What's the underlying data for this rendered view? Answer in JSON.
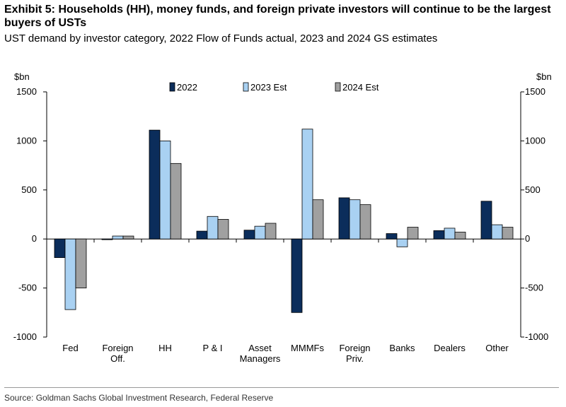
{
  "title": "Exhibit 5: Households (HH), money funds, and foreign private investors will continue to be the largest buyers of USTs",
  "subtitle": "UST demand by investor category, 2022 Flow of Funds actual, 2023 and 2024 GS estimates",
  "source": "Source: Goldman Sachs Global Investment Research, Federal Reserve",
  "chart_data": {
    "type": "bar",
    "left_unit": "$bn",
    "right_unit": "$bn",
    "ylim": [
      -1000,
      1500
    ],
    "yticks": [
      -1000,
      -500,
      0,
      500,
      1000,
      1500
    ],
    "grid": false,
    "legend_position": "top",
    "categories": [
      [
        "Fed"
      ],
      [
        "Foreign",
        "Off."
      ],
      [
        "HH"
      ],
      [
        "P & I"
      ],
      [
        "Asset",
        "Managers"
      ],
      [
        "MMMFs"
      ],
      [
        "Foreign",
        "Priv."
      ],
      [
        "Banks"
      ],
      [
        "Dealers"
      ],
      [
        "Other"
      ]
    ],
    "series": [
      {
        "name": "2022",
        "color": "#0b2d5b",
        "values": [
          -190,
          -5,
          1110,
          80,
          90,
          -750,
          420,
          55,
          85,
          385
        ]
      },
      {
        "name": "2023 Est",
        "color": "#a9d1f2",
        "values": [
          -720,
          30,
          1000,
          230,
          130,
          1120,
          400,
          -80,
          110,
          145
        ]
      },
      {
        "name": "2024 Est",
        "color": "#a0a0a0",
        "values": [
          -500,
          30,
          770,
          200,
          160,
          400,
          350,
          120,
          70,
          120
        ]
      }
    ]
  }
}
